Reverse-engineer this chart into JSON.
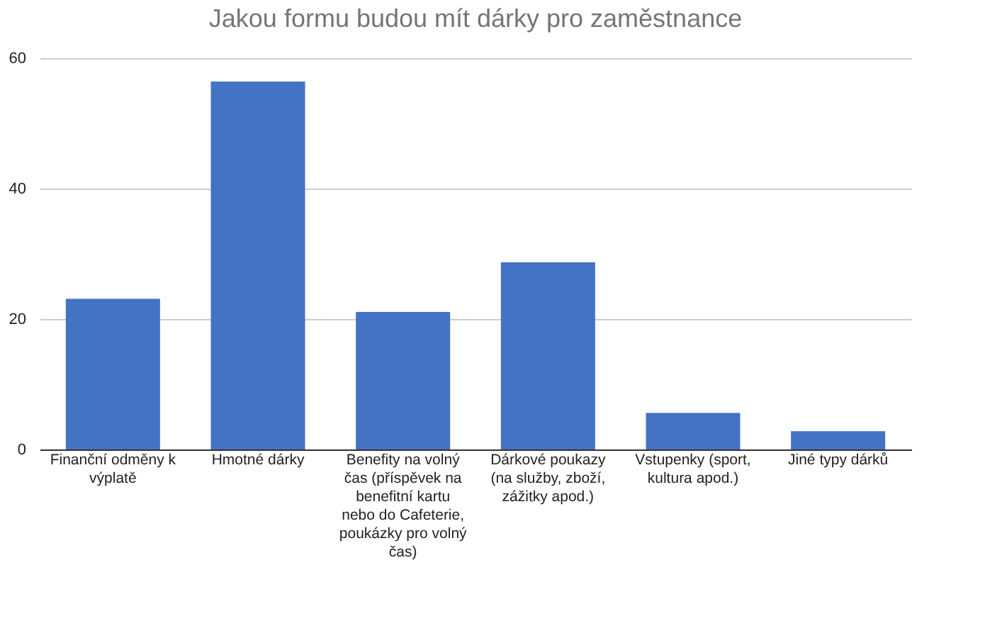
{
  "chart_data": {
    "type": "bar",
    "title": "Jakou formu budou mít dárky pro zaměstnance",
    "categories": [
      "Finanční odměny k výplatě",
      "Hmotné dárky",
      "Benefity na volný čas (příspěvek na benefitní kartu nebo do Cafeterie, poukázky pro volný čas)",
      "Dárkové poukazy (na služby, zboží, zážitky apod.)",
      "Vstupenky (sport, kultura apod.)",
      "Jiné typy dárků"
    ],
    "values": [
      23.1,
      56.4,
      21.1,
      28.7,
      5.6,
      2.8
    ],
    "color": "#4472c4",
    "ylim": [
      0,
      60
    ],
    "yticks": [
      0,
      20,
      40,
      60
    ],
    "grid": "y"
  }
}
